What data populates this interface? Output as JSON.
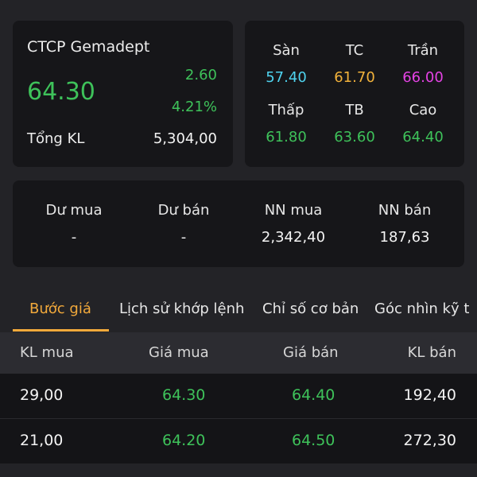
{
  "stock": {
    "name": "CTCP Gemadept",
    "price": "64.30",
    "change": "2.60",
    "change_pct": "4.21%",
    "volume_label": "Tổng KL",
    "volume_value": "5,304,00"
  },
  "levels": [
    {
      "label": "Sàn",
      "value": "57.40",
      "color": "#4fd3ef"
    },
    {
      "label": "TC",
      "value": "61.70",
      "color": "#f2b23b"
    },
    {
      "label": "Trần",
      "value": "66.00",
      "color": "#e442e4"
    },
    {
      "label": "Thấp",
      "value": "61.80",
      "color": "#3ec25a"
    },
    {
      "label": "TB",
      "value": "63.60",
      "color": "#3ec25a"
    },
    {
      "label": "Cao",
      "value": "64.40",
      "color": "#3ec25a"
    }
  ],
  "foreign": [
    {
      "label": "Dư mua",
      "value": "-"
    },
    {
      "label": "Dư bán",
      "value": "-"
    },
    {
      "label": "NN mua",
      "value": "2,342,40"
    },
    {
      "label": "NN bán",
      "value": "187,63"
    }
  ],
  "tabs": [
    {
      "label": "Bước giá"
    },
    {
      "label": "Lịch sử khớp lệnh"
    },
    {
      "label": "Chỉ số cơ bản"
    },
    {
      "label": "Góc nhìn kỹ t"
    }
  ],
  "table": {
    "headers": [
      "KL mua",
      "Giá mua",
      "Giá bán",
      "KL bán"
    ],
    "rows": [
      [
        "29,00",
        "64.30",
        "64.40",
        "192,40"
      ],
      [
        "21,00",
        "64.20",
        "64.50",
        "272,30"
      ]
    ]
  },
  "colors": {
    "up": "#3ec25a",
    "floor": "#4fd3ef",
    "reference": "#f2b23b",
    "ceiling": "#e442e4",
    "accent": "#f2a93b"
  }
}
